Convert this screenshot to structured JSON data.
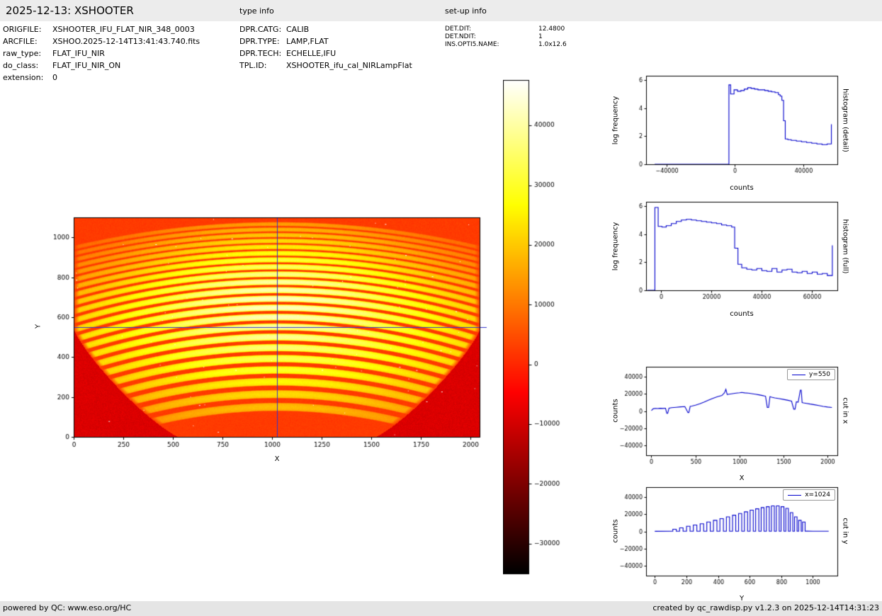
{
  "header": {
    "title": "2025-12-13: XSHOOTER",
    "type_info_label": "type info",
    "setup_info_label": "set-up info",
    "file_fields": [
      {
        "label": "ORIGFILE:",
        "value": "XSHOOTER_IFU_FLAT_NIR_348_0003"
      },
      {
        "label": "ARCFILE:",
        "value": "XSHOO.2025-12-14T13:41:43.740.fits"
      },
      {
        "label": "raw_type:",
        "value": "FLAT_IFU_NIR"
      },
      {
        "label": "do_class:",
        "value": "FLAT_IFU_NIR_ON"
      },
      {
        "label": "extension:",
        "value": "0"
      }
    ],
    "type_fields": [
      {
        "label": "DPR.CATG:",
        "value": "CALIB"
      },
      {
        "label": "DPR.TYPE:",
        "value": "LAMP,FLAT"
      },
      {
        "label": "DPR.TECH:",
        "value": "ECHELLE,IFU"
      },
      {
        "label": "TPL.ID:",
        "value": "XSHOOTER_ifu_cal_NIRLampFlat"
      }
    ],
    "setup_fields": [
      {
        "label": "DET.DIT:",
        "value": "12.4800"
      },
      {
        "label": "DET.NDIT:",
        "value": "1"
      },
      {
        "label": "INS.OPTI5.NAME:",
        "value": "1.0x12.6"
      }
    ]
  },
  "footer": {
    "left": "powered by QC: www.eso.org/HC",
    "right": "created by qc_rawdisp.py v1.2.3 on 2025-12-14T14:31:23"
  },
  "colors": {
    "accent_line": "#0000cc",
    "crosshair": "#3333cc",
    "bar_bg": "#ececec"
  },
  "chart_data": [
    {
      "id": "main_image",
      "type": "heatmap",
      "description": "XSHOOTER NIR IFU lamp-flat raw frame: ~22 curved echelle orders, dark vignetted lower corners, hot colormap",
      "xlabel": "X",
      "ylabel": "Y",
      "xlim": [
        0,
        2048
      ],
      "ylim": [
        0,
        1100
      ],
      "xticks": [
        0,
        250,
        500,
        750,
        1000,
        1250,
        1500,
        1750,
        2000
      ],
      "yticks": [
        0,
        200,
        400,
        600,
        800,
        1000
      ],
      "colormap": "hot",
      "vmin": -35000,
      "vmax": 47600,
      "crosshair": {
        "x": 1024,
        "y": 550,
        "color": "#3333cc"
      },
      "background_counts": 2400,
      "corner_radius_x": 530,
      "corner_radius_y": 540,
      "corner_counts": -9000,
      "orders": {
        "centers": [
          1068,
          1041,
          1013,
          984,
          954,
          922,
          889,
          854,
          817,
          778,
          737,
          694,
          649,
          602,
          553,
          502,
          449,
          394,
          337,
          278,
          216,
          152
        ],
        "sag": [
          118,
          121,
          124,
          127,
          130,
          133,
          136,
          140,
          144,
          148,
          152,
          156,
          160,
          164,
          168,
          172,
          176,
          181,
          186,
          191,
          196,
          201
        ],
        "halfwidth": [
          7,
          7.5,
          8,
          8.5,
          9,
          9.5,
          10,
          10.5,
          11,
          11.5,
          12,
          12.5,
          13,
          13.5,
          14,
          14.5,
          15,
          15.5,
          16,
          16.5,
          17,
          17
        ],
        "peak": [
          10000,
          12000,
          14000,
          16000,
          18000,
          20500,
          23000,
          25500,
          28000,
          30000,
          31000,
          32000,
          32000,
          31500,
          30500,
          29000,
          27000,
          24500,
          22000,
          19000,
          16000,
          13000
        ]
      }
    },
    {
      "id": "colorbar",
      "type": "colorbar",
      "colormap": "hot",
      "vmin": -35000,
      "vmax": 47600,
      "ticks": [
        40000,
        30000,
        20000,
        10000,
        0,
        -10000,
        -20000,
        -30000
      ]
    },
    {
      "id": "hist_detail",
      "type": "line",
      "right_label": "histogram (detail)",
      "xlabel": "counts",
      "ylabel": "log frequency",
      "xlim": [
        -52000,
        60000
      ],
      "ylim": [
        0,
        6.3
      ],
      "xticks": [
        -40000,
        0,
        40000
      ],
      "yticks": [
        0,
        2,
        4,
        6
      ],
      "color": "#0000cc",
      "x": [
        -47000,
        -3500,
        -3500,
        -2500,
        -2500,
        -500,
        -500,
        1500,
        1500,
        3500,
        3500,
        5500,
        5500,
        7500,
        7500,
        9500,
        9500,
        11500,
        11500,
        13500,
        13500,
        15500,
        15500,
        17500,
        17500,
        19500,
        19500,
        21500,
        21500,
        23500,
        23500,
        25500,
        25500,
        26500,
        26500,
        27500,
        27500,
        28500,
        28500,
        29500,
        29500,
        31000,
        31000,
        33000,
        33000,
        36000,
        36000,
        39000,
        39000,
        42000,
        42000,
        45000,
        45000,
        48000,
        48000,
        51000,
        51000,
        54000,
        54000,
        56500,
        56500
      ],
      "y": [
        0,
        0,
        5.65,
        5.65,
        5.0,
        5.0,
        5.3,
        5.3,
        5.2,
        5.2,
        5.25,
        5.25,
        5.35,
        5.35,
        5.45,
        5.45,
        5.4,
        5.4,
        5.35,
        5.35,
        5.3,
        5.3,
        5.3,
        5.3,
        5.25,
        5.25,
        5.2,
        5.2,
        5.15,
        5.15,
        5.1,
        5.1,
        4.95,
        4.95,
        4.85,
        4.85,
        4.55,
        4.55,
        3.1,
        3.1,
        1.8,
        1.8,
        1.75,
        1.75,
        1.7,
        1.7,
        1.65,
        1.65,
        1.6,
        1.6,
        1.55,
        1.55,
        1.5,
        1.5,
        1.45,
        1.45,
        1.4,
        1.4,
        1.45,
        1.45,
        2.85
      ]
    },
    {
      "id": "hist_full",
      "type": "line",
      "right_label": "histogram (full)",
      "xlabel": "counts",
      "ylabel": "log frequency",
      "xlim": [
        -6000,
        70000
      ],
      "ylim": [
        0,
        6.3
      ],
      "xticks": [
        0,
        20000,
        40000,
        60000
      ],
      "yticks": [
        0,
        2,
        4,
        6
      ],
      "color": "#0000cc",
      "x": [
        -5500,
        -2500,
        -2500,
        -1200,
        -1200,
        300,
        300,
        2000,
        2000,
        4000,
        4000,
        6000,
        6000,
        8000,
        8000,
        10000,
        10000,
        12000,
        12000,
        14000,
        14000,
        16000,
        16000,
        18000,
        18000,
        20000,
        20000,
        22000,
        22000,
        24000,
        24000,
        26000,
        26000,
        28000,
        28000,
        29200,
        29200,
        30500,
        30500,
        32000,
        32000,
        34000,
        34000,
        36000,
        36000,
        38000,
        38000,
        40000,
        40000,
        42000,
        42000,
        44000,
        44000,
        46000,
        46000,
        48000,
        48000,
        50000,
        50000,
        52000,
        52000,
        54000,
        54000,
        56000,
        56000,
        58000,
        58000,
        60000,
        60000,
        62000,
        62000,
        64000,
        64000,
        66000,
        66000,
        68000,
        68000
      ],
      "y": [
        0,
        0,
        5.9,
        5.9,
        4.55,
        4.55,
        4.5,
        4.5,
        4.6,
        4.6,
        4.75,
        4.75,
        4.9,
        4.9,
        5.0,
        5.0,
        5.05,
        5.05,
        5.0,
        5.0,
        4.95,
        4.95,
        4.9,
        4.9,
        4.85,
        4.85,
        4.8,
        4.8,
        4.75,
        4.75,
        4.65,
        4.65,
        4.6,
        4.6,
        4.5,
        4.5,
        3.0,
        3.0,
        1.85,
        1.85,
        1.6,
        1.6,
        1.5,
        1.5,
        1.45,
        1.45,
        1.55,
        1.55,
        1.4,
        1.4,
        1.35,
        1.35,
        1.55,
        1.55,
        1.3,
        1.3,
        1.45,
        1.45,
        1.5,
        1.5,
        1.3,
        1.3,
        1.25,
        1.25,
        1.35,
        1.35,
        1.2,
        1.2,
        1.3,
        1.3,
        1.15,
        1.15,
        1.2,
        1.2,
        1.05,
        1.05,
        3.2
      ]
    },
    {
      "id": "cut_x",
      "type": "line",
      "right_label": "cut in x",
      "legend": "y=550",
      "xlabel": "X",
      "ylabel": "counts",
      "xlim": [
        -60,
        2110
      ],
      "ylim": [
        -52000,
        52000
      ],
      "xticks": [
        0,
        500,
        1000,
        1500,
        2000
      ],
      "yticks": [
        -40000,
        -20000,
        0,
        20000,
        40000
      ],
      "color": "#0000cc",
      "x": [
        0,
        20,
        45,
        70,
        100,
        130,
        160,
        175,
        185,
        200,
        230,
        280,
        330,
        380,
        415,
        425,
        440,
        460,
        500,
        550,
        600,
        650,
        700,
        750,
        800,
        830,
        845,
        860,
        880,
        920,
        960,
        1000,
        1024,
        1060,
        1100,
        1140,
        1180,
        1220,
        1260,
        1295,
        1315,
        1330,
        1345,
        1365,
        1400,
        1450,
        1500,
        1550,
        1590,
        1615,
        1630,
        1645,
        1665,
        1690,
        1700,
        1710,
        1725,
        1760,
        1800,
        1850,
        1900,
        1950,
        2000,
        2048
      ],
      "y": [
        600,
        2600,
        3100,
        2900,
        3200,
        3000,
        3300,
        -2600,
        -2600,
        3400,
        3900,
        4400,
        4900,
        5200,
        -1800,
        -1800,
        5400,
        5800,
        6800,
        8600,
        10600,
        12800,
        15000,
        16800,
        18200,
        21500,
        25500,
        19500,
        19800,
        20400,
        21000,
        21400,
        21800,
        21300,
        21000,
        20400,
        19800,
        19000,
        18200,
        17400,
        4200,
        4200,
        16800,
        16200,
        15400,
        14600,
        13600,
        12600,
        11600,
        2200,
        2200,
        10800,
        10400,
        24500,
        24500,
        10000,
        9600,
        9000,
        8200,
        7400,
        6400,
        5400,
        4700,
        4200
      ]
    },
    {
      "id": "cut_y",
      "type": "line",
      "right_label": "cut in y",
      "legend": "x=1024",
      "xlabel": "Y",
      "ylabel": "counts",
      "xlim": [
        -55,
        1155
      ],
      "ylim": [
        -52000,
        52000
      ],
      "xticks": [
        0,
        200,
        400,
        600,
        800,
        1000
      ],
      "yticks": [
        -40000,
        -20000,
        0,
        20000,
        40000
      ],
      "color": "#0000cc",
      "x": [
        0,
        108,
        114,
        114,
        136,
        136,
        157,
        157,
        179,
        179,
        201,
        201,
        223,
        223,
        244,
        244,
        266,
        266,
        287,
        287,
        309,
        309,
        329,
        329,
        351,
        351,
        371,
        371,
        393,
        393,
        412,
        412,
        434,
        434,
        453,
        453,
        473,
        473,
        492,
        492,
        512,
        512,
        530,
        530,
        550,
        550,
        567,
        567,
        587,
        587,
        603,
        603,
        623,
        623,
        638,
        638,
        658,
        658,
        673,
        673,
        691,
        691,
        706,
        706,
        724,
        724,
        738,
        738,
        756,
        756,
        769,
        769,
        787,
        787,
        799,
        799,
        817,
        817,
        829,
        829,
        845,
        845,
        857,
        857,
        873,
        873,
        884,
        884,
        900,
        900,
        910,
        910,
        926,
        926,
        935,
        935,
        951,
        951,
        960,
        1000,
        1100
      ],
      "y": [
        100,
        150,
        200,
        2500,
        2500,
        200,
        200,
        4200,
        4200,
        200,
        200,
        6000,
        6000,
        200,
        200,
        7500,
        7500,
        200,
        200,
        9000,
        9000,
        200,
        200,
        11000,
        11000,
        200,
        200,
        13000,
        13000,
        200,
        200,
        15000,
        15000,
        200,
        200,
        17000,
        17000,
        200,
        200,
        19000,
        19000,
        200,
        200,
        21000,
        21000,
        200,
        200,
        23000,
        23000,
        200,
        200,
        25000,
        25000,
        200,
        200,
        26500,
        26500,
        200,
        200,
        28000,
        28000,
        200,
        200,
        29000,
        29000,
        200,
        200,
        30000,
        30000,
        200,
        200,
        30000,
        30000,
        200,
        200,
        29000,
        29000,
        200,
        200,
        27000,
        27000,
        200,
        200,
        22000,
        22000,
        200,
        200,
        17000,
        17000,
        200,
        200,
        13000,
        13000,
        200,
        200,
        11000,
        11000,
        200,
        300,
        200,
        150
      ]
    }
  ]
}
